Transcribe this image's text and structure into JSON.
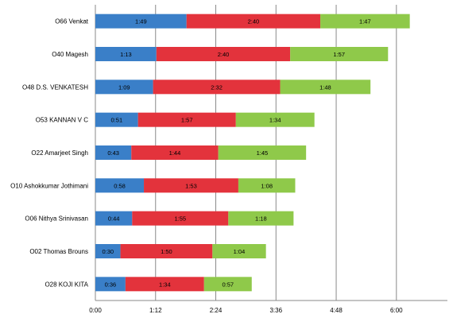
{
  "chart_data": {
    "type": "bar",
    "orientation": "horizontal",
    "stacked": true,
    "categories": [
      "O66 Venkat",
      "O40 Magesh",
      "O48 D.S. VENKATESH",
      "O53 KANNAN V C",
      "O22 Amarjeet Singh",
      "O10 Ashokkumar Jothimani",
      "O06 Nithya Srinivasan",
      "O02 Thomas Brouns",
      "O28 KOJI KITA"
    ],
    "series": [
      {
        "color": "#3a7fc8",
        "labels": [
          "1:49",
          "1:13",
          "1:09",
          "0:51",
          "0:43",
          "0:58",
          "0:44",
          "0:30",
          "0:36"
        ],
        "values": [
          109,
          73,
          69,
          51,
          43,
          58,
          44,
          30,
          36
        ]
      },
      {
        "color": "#e3333c",
        "labels": [
          "2:40",
          "2:40",
          "2:32",
          "1:57",
          "1:44",
          "1:53",
          "1:55",
          "1:50",
          "1:34"
        ],
        "values": [
          160,
          160,
          152,
          117,
          104,
          113,
          115,
          110,
          94
        ]
      },
      {
        "color": "#8fc94a",
        "labels": [
          "1:47",
          "1:57",
          "1:48",
          "1:34",
          "1:45",
          "1:08",
          "1:18",
          "1:04",
          "0:57"
        ],
        "values": [
          107,
          117,
          108,
          94,
          105,
          68,
          78,
          64,
          57
        ]
      }
    ],
    "x_axis": {
      "ticks": [
        0,
        72,
        144,
        216,
        288,
        360
      ],
      "tick_labels": [
        "0:00",
        "1:12",
        "2:24",
        "3:36",
        "4:48",
        "6:00"
      ],
      "range": [
        0,
        421
      ]
    },
    "grid": "vertical",
    "legend": "none"
  }
}
